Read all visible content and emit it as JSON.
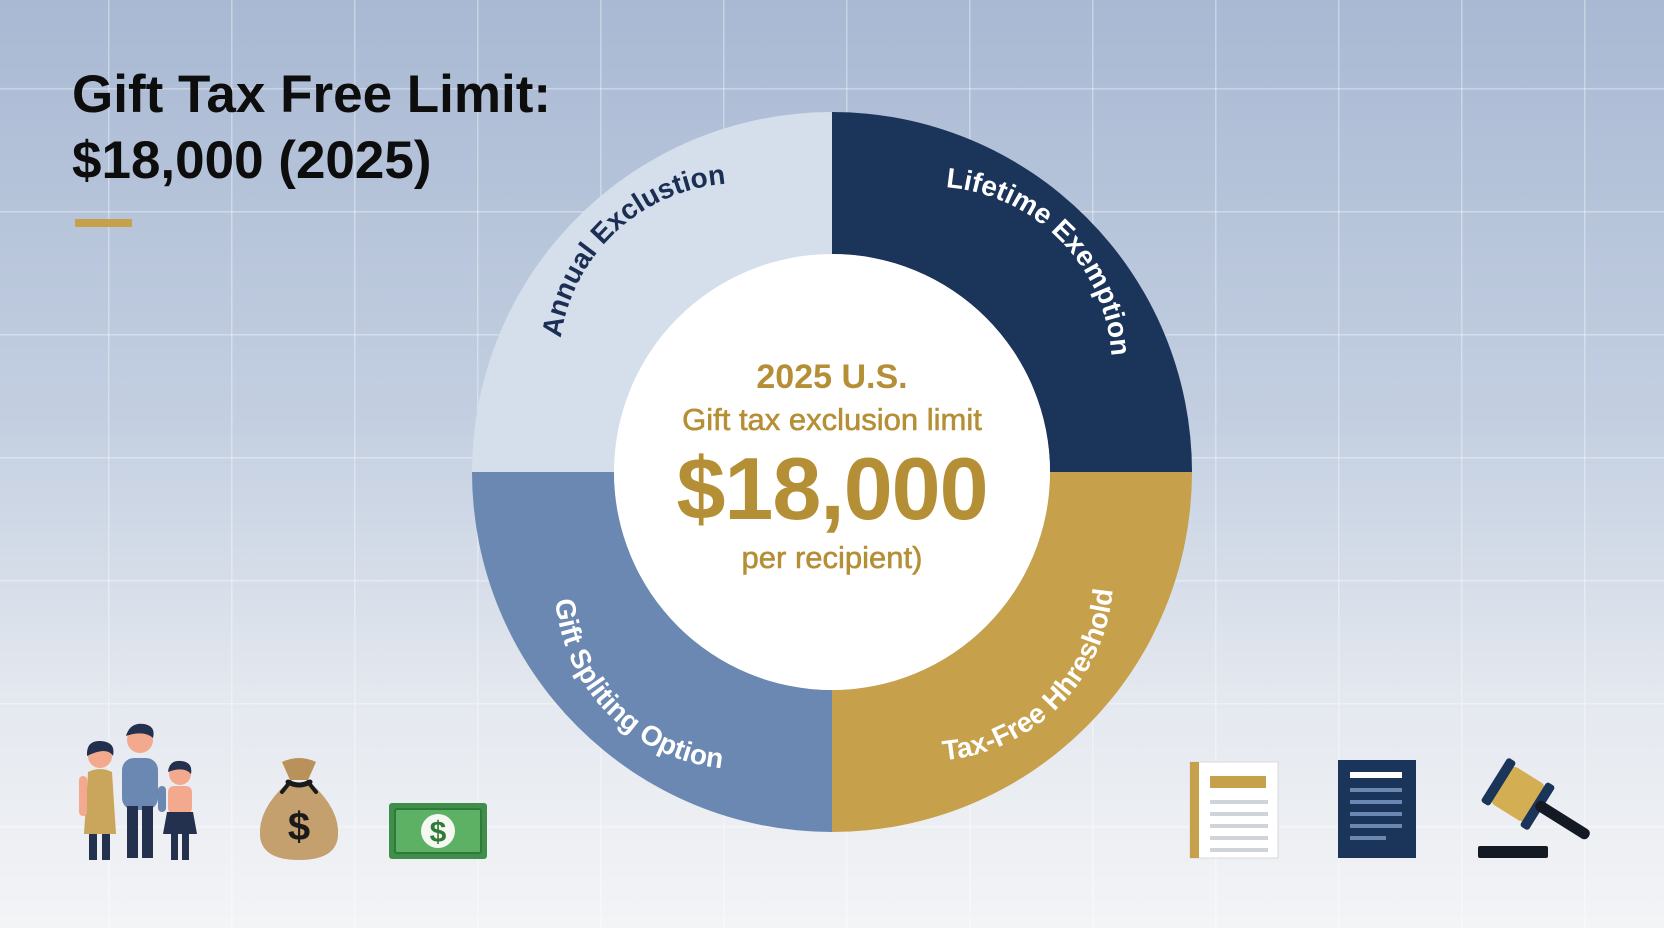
{
  "title": {
    "line1": "Gift Tax Free Limit:",
    "line2": "$18,000 (2025)"
  },
  "diagram": {
    "segments": [
      {
        "label": "Annual Exclustion",
        "color": "#d5dfeb",
        "text_color": "#1b2f55"
      },
      {
        "label": "Lifetime Exemption",
        "color": "#1b3459",
        "text_color": "#ffffff"
      },
      {
        "label": "Tax-Free Hhreshold",
        "color": "#c6a04a",
        "text_color": "#ffffff"
      },
      {
        "label": "Gift Spliting Option",
        "color": "#6a88b2",
        "text_color": "#ffffff"
      }
    ],
    "center": {
      "line1": "2025 U.S.",
      "line2": "Gift tax exclusion limit",
      "amount": "$18,000",
      "line3": "per recipient)"
    }
  },
  "icons": {
    "left": [
      "family-icon",
      "money-bag-icon",
      "dollar-bill-icon"
    ],
    "right": [
      "document-icon",
      "report-icon",
      "gavel-icon"
    ]
  },
  "colors": {
    "gold": "#c6a04a",
    "navy": "#1b3459",
    "steel_blue": "#6a88b2",
    "pale_blue": "#d5dfeb",
    "accent_text": "#b58f36"
  }
}
